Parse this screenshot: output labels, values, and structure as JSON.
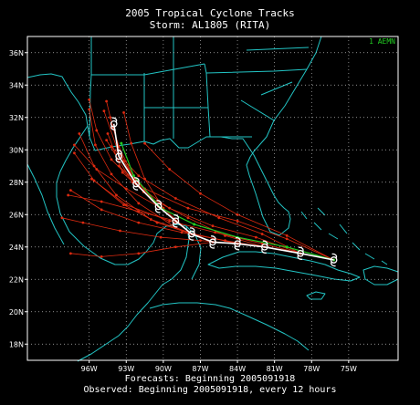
{
  "header": {
    "title": "2005 Tropical Cyclone Tracks",
    "subtitle": "Storm: AL1805 (RITA)"
  },
  "footer": {
    "forecasts": "Forecasts: Beginning 2005091918",
    "observed": "Observed: Beginning 2005091918, every 12 hours"
  },
  "legend": {
    "label": "1 AEMN",
    "color": "#22cc22"
  },
  "colors": {
    "background": "#000000",
    "coastline": "#22c4c4",
    "borders": "#22c4c4",
    "forecast_tracks": "#dd2a10",
    "observed_track": "#ffffff",
    "grid": "#bbbbbb"
  },
  "map": {
    "lon_range": [
      -101,
      -71
    ],
    "lat_range": [
      17,
      37
    ],
    "gridlines": "dotted"
  },
  "axes": {
    "lat_ticks": [
      {
        "value": 36,
        "label": "36N"
      },
      {
        "value": 34,
        "label": "34N"
      },
      {
        "value": 32,
        "label": "32N"
      },
      {
        "value": 30,
        "label": "30N"
      },
      {
        "value": 28,
        "label": "28N"
      },
      {
        "value": 26,
        "label": "26N"
      },
      {
        "value": 24,
        "label": "24N"
      },
      {
        "value": 22,
        "label": "22N"
      },
      {
        "value": 20,
        "label": "20N"
      },
      {
        "value": 18,
        "label": "18N"
      }
    ],
    "lon_ticks": [
      {
        "value": -96,
        "label": "96W"
      },
      {
        "value": -93,
        "label": "93W"
      },
      {
        "value": -90,
        "label": "90W"
      },
      {
        "value": -87,
        "label": "87W"
      },
      {
        "value": -84,
        "label": "84W"
      },
      {
        "value": -81,
        "label": "81W"
      },
      {
        "value": -78,
        "label": "78W"
      },
      {
        "value": -75,
        "label": "75W"
      }
    ]
  },
  "observed_track": [
    {
      "lon": -76.2,
      "lat": 23.2
    },
    {
      "lon": -78.9,
      "lat": 23.6
    },
    {
      "lon": -81.8,
      "lat": 24.0
    },
    {
      "lon": -84.0,
      "lat": 24.2
    },
    {
      "lon": -86.0,
      "lat": 24.3
    },
    {
      "lon": -87.7,
      "lat": 24.8
    },
    {
      "lon": -89.0,
      "lat": 25.6
    },
    {
      "lon": -90.4,
      "lat": 26.5
    },
    {
      "lon": -92.2,
      "lat": 27.9
    },
    {
      "lon": -93.6,
      "lat": 29.6
    },
    {
      "lon": -94.0,
      "lat": 31.6
    }
  ],
  "forecast_tracks": [
    [
      [
        -76.2,
        23.2
      ],
      [
        -80,
        24.5
      ],
      [
        -84,
        25.6
      ],
      [
        -88,
        26.4
      ],
      [
        -91.5,
        27.6
      ],
      [
        -93.6,
        29.0
      ]
    ],
    [
      [
        -76.2,
        23.2
      ],
      [
        -80,
        24.7
      ],
      [
        -84,
        26
      ],
      [
        -87,
        27.3
      ],
      [
        -89.5,
        28.8
      ],
      [
        -91.5,
        30.4
      ]
    ],
    [
      [
        -78.9,
        23.6
      ],
      [
        -82,
        24.8
      ],
      [
        -85.5,
        25.8
      ],
      [
        -89,
        27
      ],
      [
        -92,
        28.4
      ],
      [
        -94.2,
        30.2
      ]
    ],
    [
      [
        -78.9,
        23.6
      ],
      [
        -82.5,
        24.6
      ],
      [
        -86,
        25.3
      ],
      [
        -89.5,
        26.4
      ],
      [
        -92.5,
        28
      ],
      [
        -94.6,
        30.6
      ]
    ],
    [
      [
        -78.9,
        23.6
      ],
      [
        -82,
        24.2
      ],
      [
        -85.8,
        24.9
      ],
      [
        -89.5,
        25.6
      ],
      [
        -93,
        26.6
      ],
      [
        -95.8,
        28.2
      ]
    ],
    [
      [
        -81.8,
        24.0
      ],
      [
        -85,
        24.4
      ],
      [
        -88.5,
        24.9
      ],
      [
        -92,
        25.5
      ],
      [
        -95,
        26.3
      ],
      [
        -97.5,
        27.5
      ]
    ],
    [
      [
        -81.8,
        24.0
      ],
      [
        -85,
        24.7
      ],
      [
        -88,
        25.8
      ],
      [
        -91,
        27
      ],
      [
        -93.3,
        28.6
      ],
      [
        -94.5,
        31.0
      ]
    ],
    [
      [
        -84.0,
        24.2
      ],
      [
        -87,
        24.4
      ],
      [
        -90.2,
        24.6
      ],
      [
        -93.5,
        25.0
      ],
      [
        -96.5,
        25.5
      ],
      [
        -98.2,
        25.8
      ]
    ],
    [
      [
        -84.0,
        24.2
      ],
      [
        -87.5,
        24.8
      ],
      [
        -91,
        25.7
      ],
      [
        -93.8,
        27.2
      ],
      [
        -95.6,
        29.0
      ],
      [
        -96.8,
        31.0
      ]
    ],
    [
      [
        -86.0,
        24.3
      ],
      [
        -89,
        24.0
      ],
      [
        -92,
        23.6
      ],
      [
        -95,
        23.4
      ],
      [
        -97.5,
        23.6
      ]
    ],
    [
      [
        -86.0,
        24.3
      ],
      [
        -89,
        25.2
      ],
      [
        -92,
        26.7
      ],
      [
        -94.2,
        28.5
      ],
      [
        -95.5,
        30.3
      ],
      [
        -96.0,
        32.5
      ]
    ],
    [
      [
        -87.7,
        24.8
      ],
      [
        -90.5,
        25.5
      ],
      [
        -93.2,
        26.6
      ],
      [
        -95.6,
        28.1
      ],
      [
        -97.2,
        29.8
      ]
    ],
    [
      [
        -87.7,
        24.8
      ],
      [
        -90,
        26.4
      ],
      [
        -91.5,
        28.2
      ],
      [
        -92.6,
        30.4
      ],
      [
        -93.2,
        32.3
      ]
    ],
    [
      [
        -89.0,
        25.6
      ],
      [
        -92,
        26.2
      ],
      [
        -95,
        26.8
      ],
      [
        -97.7,
        27.2
      ]
    ],
    [
      [
        -89.0,
        25.6
      ],
      [
        -91.6,
        27.4
      ],
      [
        -93.2,
        29.3
      ],
      [
        -94.1,
        31.4
      ],
      [
        -94.6,
        33.0
      ]
    ],
    [
      [
        -90.4,
        26.5
      ],
      [
        -93,
        27.6
      ],
      [
        -95.4,
        28.8
      ],
      [
        -97.2,
        30.3
      ]
    ],
    [
      [
        -90.4,
        26.5
      ],
      [
        -92.4,
        28.3
      ],
      [
        -93.6,
        30.2
      ],
      [
        -94.3,
        32.0
      ]
    ],
    [
      [
        -92.2,
        27.9
      ],
      [
        -94.2,
        29.4
      ],
      [
        -95.4,
        31.2
      ],
      [
        -96.0,
        33.1
      ]
    ],
    [
      [
        -92.2,
        27.9
      ],
      [
        -93.7,
        30.0
      ],
      [
        -94.8,
        32.4
      ]
    ]
  ],
  "aemn_track": [
    [
      -76.2,
      23.2
    ],
    [
      -80,
      24.0
    ],
    [
      -84,
      24.6
    ],
    [
      -87.5,
      25.4
    ],
    [
      -90.2,
      26.4
    ],
    [
      -92.4,
      28.4
    ],
    [
      -93.4,
      30.4
    ]
  ]
}
